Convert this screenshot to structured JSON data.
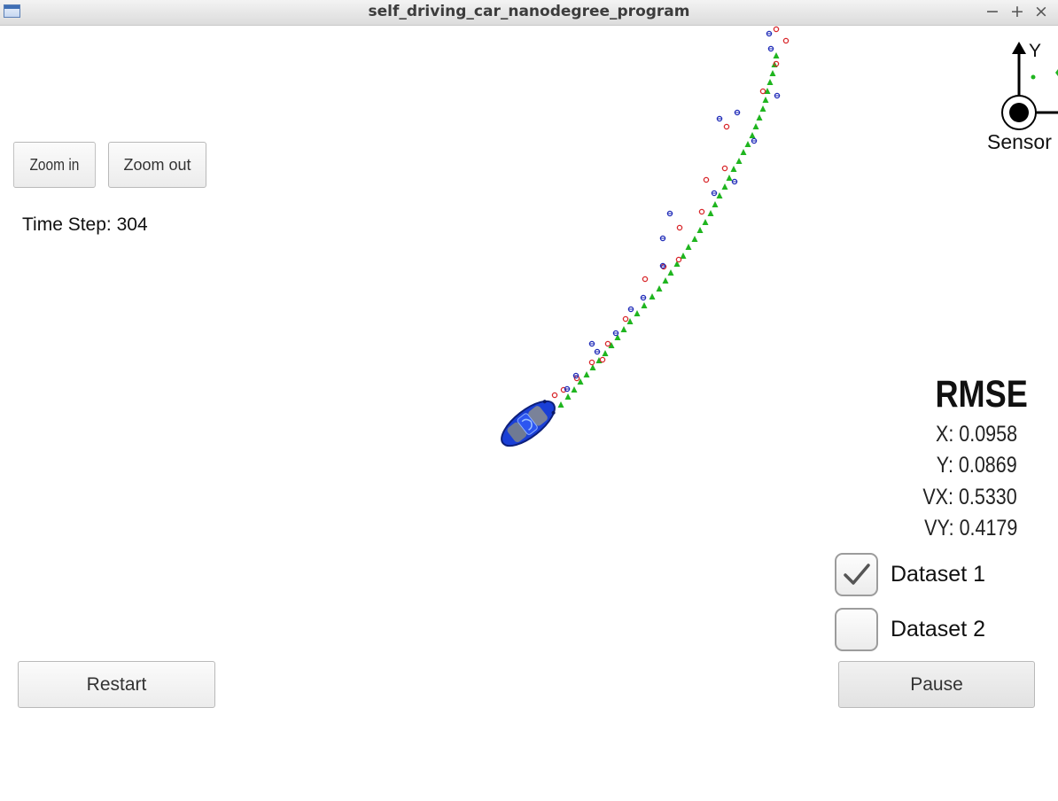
{
  "window": {
    "title": "self_driving_car_nanodegree_program",
    "controls": {
      "minimize": "−",
      "maximize": "+",
      "close": "×"
    }
  },
  "controls": {
    "zoom_in_label": "Zoom in",
    "zoom_out_label": "Zoom out",
    "restart_label": "Restart",
    "pause_label": "Pause"
  },
  "status": {
    "time_step_text": "Time Step: 304"
  },
  "rmse": {
    "title": "RMSE",
    "x": "X: 0.0958",
    "y": "Y: 0.0869",
    "vx": "VX: 0.5330",
    "vy": "VY: 0.4179"
  },
  "datasets": [
    {
      "label": "Dataset 1",
      "checked": true
    },
    {
      "label": "Dataset 2",
      "checked": false
    }
  ],
  "sensor": {
    "label": "Sensor",
    "axis_y_label": "Y"
  },
  "colors": {
    "lidar_marker": "#d8262a",
    "radar_marker": "#1f2bb8",
    "estimate_marker": "#1fb51f",
    "car_body": "#1a3fd6"
  },
  "icons": {
    "check": "check-icon",
    "car": "car-icon",
    "app": "window-icon"
  }
}
